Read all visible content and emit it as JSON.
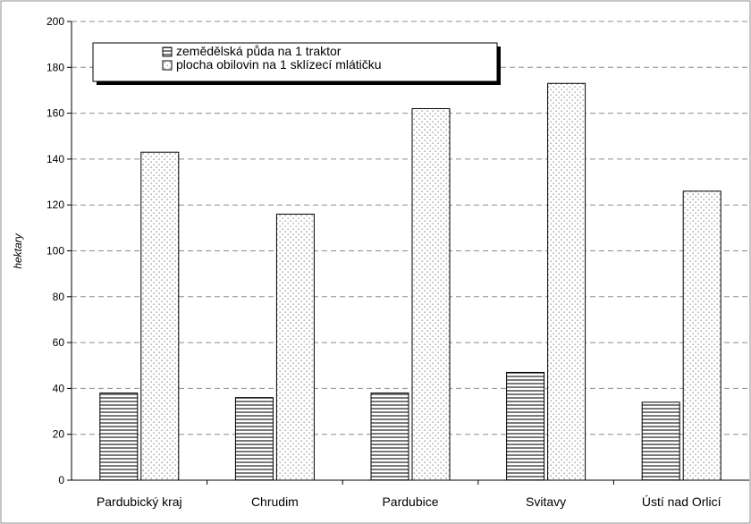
{
  "chart_data": {
    "type": "bar",
    "ylabel": "hektary",
    "ylim": [
      0,
      200
    ],
    "yticks": [
      0,
      20,
      40,
      60,
      80,
      100,
      120,
      140,
      160,
      180,
      200
    ],
    "grid": "horizontal dashed",
    "legend_position": "top-left",
    "categories": [
      "Pardubický kraj",
      "Chrudim",
      "Pardubice",
      "Svitavy",
      "Ústí nad Orlicí"
    ],
    "series": [
      {
        "name": "zemědělská půda na 1 traktor",
        "values": [
          38,
          36,
          38,
          47,
          34
        ],
        "pattern": "horizontal-stripes"
      },
      {
        "name": "plocha obilovin na 1 sklízecí mlátičku",
        "values": [
          143,
          116,
          162,
          173,
          126
        ],
        "pattern": "dots"
      }
    ]
  }
}
